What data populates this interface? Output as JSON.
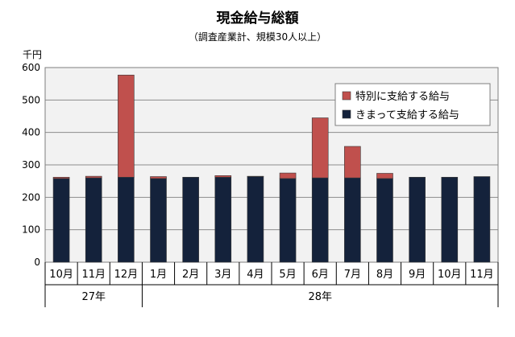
{
  "chart_data": {
    "type": "bar",
    "stacked": true,
    "title": "現金給与総額",
    "subtitle": "（調査産業計、規模30人以上）",
    "unit_label": "千円",
    "ylim": [
      0,
      600
    ],
    "yticks": [
      0,
      100,
      200,
      300,
      400,
      500,
      600
    ],
    "grid": true,
    "legend_position": "top-right",
    "categories": [
      "10月",
      "11月",
      "12月",
      "1月",
      "2月",
      "3月",
      "4月",
      "5月",
      "6月",
      "7月",
      "8月",
      "9月",
      "10月",
      "11月"
    ],
    "year_groups": [
      {
        "label": "27年",
        "count": 3
      },
      {
        "label": "28年",
        "count": 11
      }
    ],
    "series": [
      {
        "name": "きまって支給する給与",
        "color": "#14223b",
        "values": [
          258,
          260,
          262,
          258,
          262,
          262,
          264,
          258,
          260,
          260,
          258,
          262,
          262,
          264
        ]
      },
      {
        "name": "特別に支給する給与",
        "color": "#c0504d",
        "values": [
          4,
          5,
          315,
          6,
          0,
          5,
          1,
          17,
          185,
          97,
          16,
          0,
          0,
          0
        ]
      }
    ],
    "legend": [
      "特別に支給する給与",
      "きまって支給する給与"
    ]
  }
}
